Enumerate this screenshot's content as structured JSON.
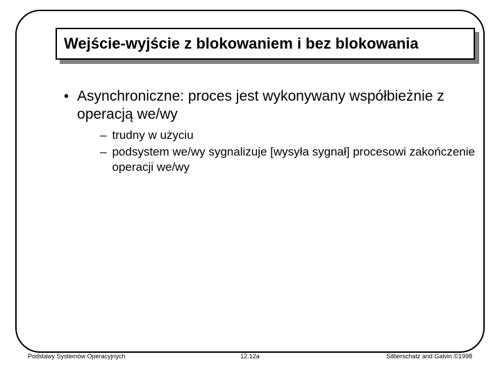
{
  "title": "Wejście-wyjście z blokowaniem i bez blokowania",
  "bullet": {
    "main": "Asynchroniczne: proces jest wykonywany współbieżnie z operacją we/wy",
    "subs": [
      "trudny w użyciu",
      "podsystem we/wy sygnalizuje [wysyła sygnał] procesowi zakończenie operacji we/wy"
    ]
  },
  "footer": {
    "left": "Podstawy Systemów Operacyjnych",
    "center": "12.12a",
    "right": "Silberschatz and Galvin ©1998"
  }
}
